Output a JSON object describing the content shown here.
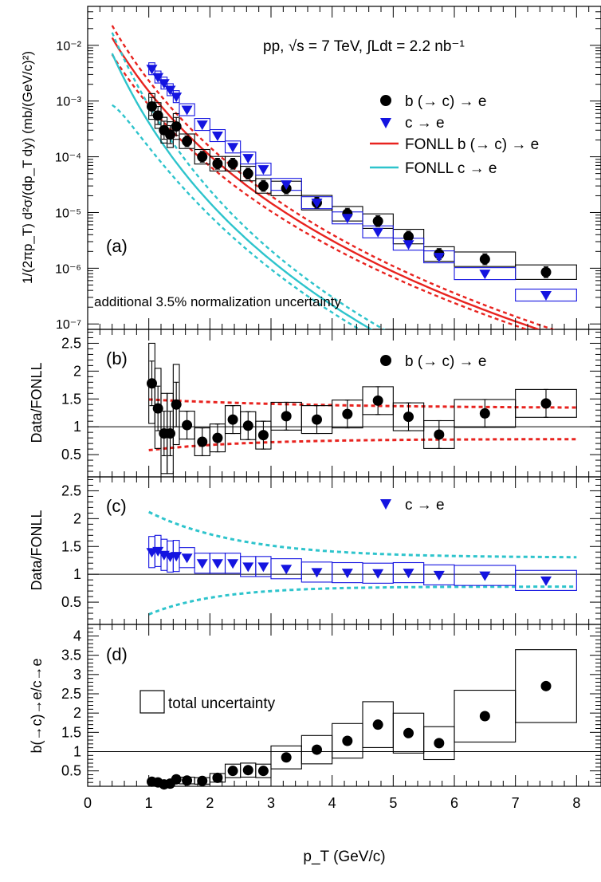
{
  "figure": {
    "energy_label": "pp, √s = 7 TeV, ∫Ldt = 2.2 nb⁻¹",
    "norm_note": "additional 3.5% normalization uncertainty",
    "xlabel": "p_T (GeV/c)",
    "x_tick_labels": [
      "0",
      "1",
      "2",
      "3",
      "4",
      "5",
      "6",
      "7",
      "8"
    ],
    "colors": {
      "fonll_b": "#e8231f",
      "fonll_c": "#2ec4cc",
      "c_marker": "#1414e0",
      "data": "#000000"
    }
  },
  "chart_data": [
    {
      "id": "a",
      "type": "scatter",
      "panel_label": "(a)",
      "ylabel": "1/(2πp_T) d²σ/(dp_T dy) (mb/(GeV/c)²)",
      "y_scale": "log",
      "ylim": [
        8e-08,
        0.05
      ],
      "xlim": [
        0,
        8.4
      ],
      "y_tick_labels": [
        "10⁻⁷",
        "10⁻⁶",
        "10⁻⁵",
        "10⁻⁴",
        "10⁻³",
        "10⁻²"
      ],
      "legend": [
        "b (→ c) → e",
        "c → e",
        "FONLL b (→ c) → e",
        "FONLL c → e"
      ],
      "bins_low": [
        1.0,
        1.1,
        1.2,
        1.3,
        1.4,
        1.5,
        1.75,
        2.0,
        2.25,
        2.5,
        2.75,
        3.0,
        3.5,
        4.0,
        4.5,
        5.0,
        5.5,
        6.0,
        7.0
      ],
      "bins_high": [
        1.1,
        1.2,
        1.3,
        1.4,
        1.5,
        1.75,
        2.0,
        2.25,
        2.5,
        2.75,
        3.0,
        3.5,
        4.0,
        4.5,
        5.0,
        5.5,
        6.0,
        7.0,
        8.0
      ],
      "series": [
        {
          "name": "b (→ c) → e",
          "x": [
            1.05,
            1.15,
            1.25,
            1.35,
            1.45,
            1.625,
            1.875,
            2.125,
            2.375,
            2.625,
            2.875,
            3.25,
            3.75,
            4.25,
            4.75,
            5.25,
            5.75,
            6.5,
            7.5
          ],
          "y": [
            0.0008,
            0.00055,
            0.0003,
            0.00025,
            0.00035,
            0.00019,
            0.0001,
            7.5e-05,
            7.5e-05,
            5e-05,
            3e-05,
            2.7e-05,
            1.5e-05,
            9.5e-06,
            7e-06,
            3.7e-06,
            1.8e-06,
            1.45e-06,
            8.5e-07
          ]
        },
        {
          "name": "c → e",
          "x": [
            1.05,
            1.15,
            1.25,
            1.35,
            1.45,
            1.625,
            1.875,
            2.125,
            2.375,
            2.625,
            2.875,
            3.25,
            3.75,
            4.25,
            4.75,
            5.25,
            5.75,
            6.5,
            7.5
          ],
          "y": [
            0.0038,
            0.0027,
            0.0021,
            0.0016,
            0.0012,
            0.0007,
            0.00038,
            0.00024,
            0.00015,
            9.5e-05,
            6e-05,
            3.2e-05,
            1.5e-05,
            8e-06,
            4.5e-06,
            2.7e-06,
            1.6e-06,
            8e-07,
            3.3e-07
          ]
        }
      ]
    },
    {
      "id": "b",
      "type": "scatter",
      "panel_label": "(b)",
      "ylabel": "Data/FONLL",
      "legend": [
        "b (→ c) → e"
      ],
      "ylim": [
        0.1,
        2.75
      ],
      "y_tick_labels": [
        "0.5",
        "1",
        "1.5",
        "2",
        "2.5"
      ],
      "series": [
        {
          "name": "b (→ c) → e",
          "x": [
            1.05,
            1.15,
            1.25,
            1.35,
            1.45,
            1.625,
            1.875,
            2.125,
            2.375,
            2.625,
            2.875,
            3.25,
            3.75,
            4.25,
            4.75,
            5.25,
            5.75,
            6.5,
            7.5
          ],
          "y": [
            1.78,
            1.33,
            0.88,
            0.88,
            1.4,
            1.03,
            0.73,
            0.8,
            1.13,
            1.02,
            0.85,
            1.19,
            1.13,
            1.23,
            1.47,
            1.18,
            0.86,
            1.24,
            1.42
          ]
        }
      ]
    },
    {
      "id": "c",
      "type": "scatter",
      "panel_label": "(c)",
      "ylabel": "Data/FONLL",
      "legend": [
        "c → e"
      ],
      "ylim": [
        0.1,
        2.75
      ],
      "y_tick_labels": [
        "0.5",
        "1",
        "1.5",
        "2",
        "2.5"
      ],
      "series": [
        {
          "name": "c → e",
          "x": [
            1.05,
            1.15,
            1.25,
            1.35,
            1.45,
            1.625,
            1.875,
            2.125,
            2.375,
            2.625,
            2.875,
            3.25,
            3.75,
            4.25,
            4.75,
            5.25,
            5.75,
            6.5,
            7.5
          ],
          "y": [
            1.4,
            1.42,
            1.35,
            1.32,
            1.33,
            1.3,
            1.2,
            1.2,
            1.2,
            1.14,
            1.14,
            1.1,
            1.04,
            1.03,
            1.02,
            1.03,
            0.99,
            0.98,
            0.89
          ]
        }
      ]
    },
    {
      "id": "d",
      "type": "scatter",
      "panel_label": "(d)",
      "ylabel": "b(→c)→e/c→e",
      "legend": [
        "total uncertainty"
      ],
      "ylim": [
        0.1,
        4.3
      ],
      "y_tick_labels": [
        "0.5",
        "1",
        "1.5",
        "2",
        "2.5",
        "3",
        "3.5",
        "4"
      ],
      "series": [
        {
          "name": "",
          "x": [
            1.05,
            1.15,
            1.25,
            1.35,
            1.45,
            1.625,
            1.875,
            2.125,
            2.375,
            2.625,
            2.875,
            3.25,
            3.75,
            4.25,
            4.75,
            5.25,
            5.75,
            6.5,
            7.5
          ],
          "y": [
            0.22,
            0.2,
            0.15,
            0.17,
            0.28,
            0.25,
            0.24,
            0.32,
            0.5,
            0.52,
            0.5,
            0.85,
            1.05,
            1.28,
            1.7,
            1.48,
            1.22,
            1.92,
            2.7
          ]
        }
      ]
    }
  ]
}
